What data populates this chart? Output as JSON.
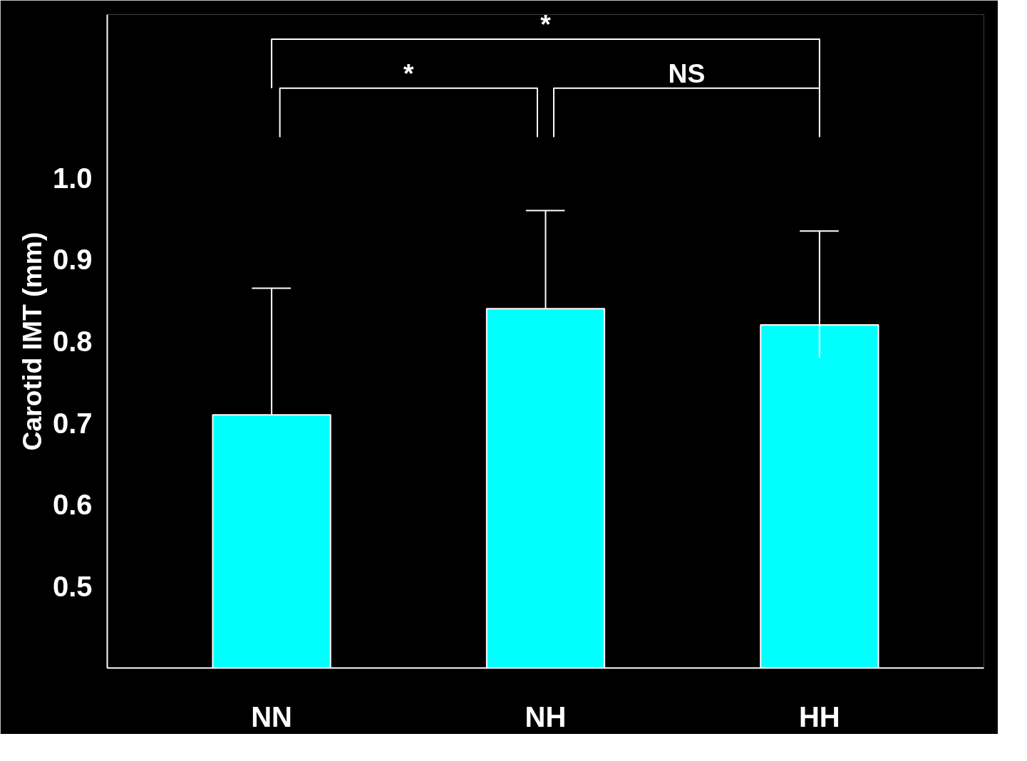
{
  "chart_data": {
    "type": "bar",
    "ylabel": "Carotid IMT (mm)",
    "categories": [
      "NN",
      "NH",
      "HH"
    ],
    "values": [
      0.71,
      0.84,
      0.82
    ],
    "errors": [
      [
        0.71,
        0.865
      ],
      [
        0.84,
        0.96
      ],
      [
        0.78,
        0.935
      ]
    ],
    "color": "#00ffff",
    "ylim": [
      0.4,
      1.2
    ],
    "yticks": [
      0.5,
      0.6,
      0.7,
      0.8,
      0.9,
      {
        "value": 1.0,
        "label": "1.0"
      }
    ],
    "annotations": [
      "*",
      "*",
      "NS"
    ]
  }
}
